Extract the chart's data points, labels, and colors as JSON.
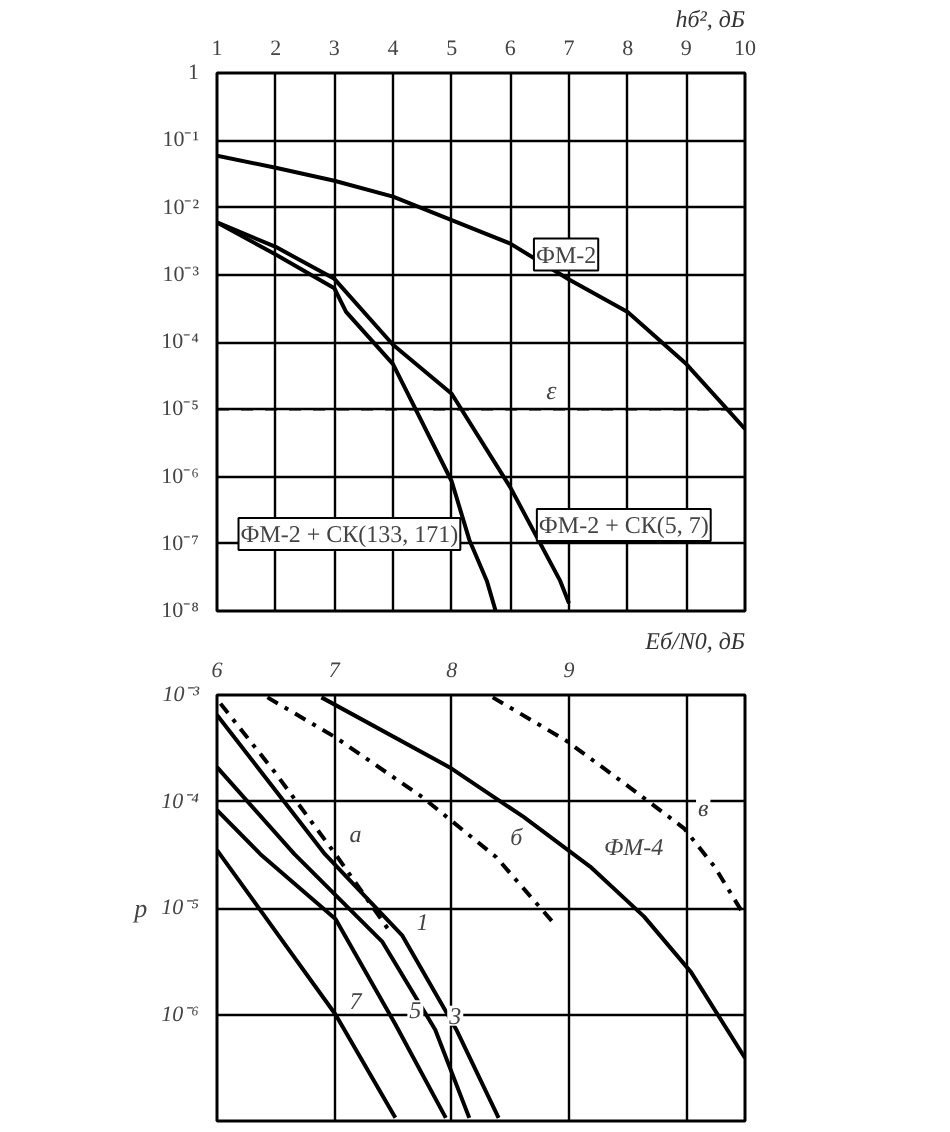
{
  "chart_data": [
    {
      "type": "line",
      "xlabel": "hб², дБ",
      "xlim": [
        1,
        10
      ],
      "xticks": [
        1,
        2,
        3,
        4,
        5,
        6,
        7,
        8,
        9,
        10
      ],
      "log": "y",
      "ylim": [
        1e-08,
        1
      ],
      "yticks": [
        1,
        {
          "value": 0.1,
          "label": "10⁻¹"
        },
        {
          "value": 0.01,
          "label": "10⁻²"
        },
        {
          "value": 0.001,
          "label": "10⁻³"
        },
        {
          "value": 0.0001,
          "label": "10⁻⁴"
        },
        {
          "value": 1e-05,
          "label": "10⁻⁵"
        },
        {
          "value": 1e-06,
          "label": "10⁻⁶"
        },
        {
          "value": 1e-07,
          "label": "10⁻⁷"
        },
        {
          "value": 1e-08,
          "label": "10⁻⁸"
        }
      ],
      "grid": true,
      "series": [
        {
          "color": "#000000",
          "x": [
            1,
            2,
            3,
            4,
            5,
            6,
            7,
            8,
            9,
            10
          ],
          "values": [
            0.059,
            0.039,
            0.025,
            0.0145,
            0.0065,
            0.0029,
            0.00085,
            0.00028,
            4.7e-05,
            5.1e-06
          ]
        },
        {
          "color": "#000000",
          "x": [
            1,
            2,
            3,
            4,
            5,
            6,
            6.85,
            7.0
          ],
          "values": [
            0.006,
            0.0026,
            0.00087,
            9.1e-05,
            1.7e-05,
            6.9e-07,
            2.8e-08,
            1.3e-08
          ]
        },
        {
          "color": "#000000",
          "x": [
            1,
            2,
            3,
            3.2,
            4,
            5,
            5.3,
            5.6,
            5.75
          ],
          "values": [
            0.006,
            0.002,
            0.00063,
            0.00028,
            4.7e-05,
            8.5e-07,
            1.15e-07,
            2.8e-08,
            1e-08
          ]
        }
      ],
      "ref_lines": [
        {
          "axis": "y",
          "value": 1e-05,
          "label": "ε",
          "line_style": "dashed"
        }
      ],
      "annotations": [
        {
          "text": "ФМ-2",
          "x": 6.3,
          "y": 0.002
        },
        {
          "text": "ФМ-2 + СК(5, 7)",
          "x": 6.35,
          "y": 1.9e-07
        },
        {
          "text": "ФМ-2 + СК(133, 171)",
          "x": 5.25,
          "y": 1.4e-07
        }
      ]
    },
    {
      "type": "line",
      "xlabel": "Eб/N0, дБ",
      "ylabel": "p",
      "xlim": [
        6,
        10.5
      ],
      "xticks": [
        6,
        7,
        8,
        9,
        {
          "value": 10,
          "label": null
        }
      ],
      "log": "y",
      "ylim": [
        1e-07,
        0.001
      ],
      "yticks": [
        {
          "value": 0.001,
          "label": "10⁻³"
        },
        {
          "value": 0.0001,
          "label": "10⁻⁴"
        },
        {
          "value": 1e-05,
          "label": "10⁻⁵"
        },
        {
          "value": 1e-06,
          "label": "10⁻⁶"
        }
      ],
      "grid": true,
      "series": [
        {
          "color": "#000000",
          "line_style": "dashdot",
          "x": [
            8.35,
            8.98,
            9.52,
            9.98,
            10.24,
            10.5
          ],
          "values": [
            0.00095,
            0.00037,
            0.000135,
            5.6e-05,
            2.45e-05,
            8.3e-06
          ]
        },
        {
          "color": "#000000",
          "x": [
            6.89,
            7.98,
            8.61,
            9.18,
            9.64,
            10.04,
            10.5
          ],
          "values": [
            0.00095,
            0.00021,
            7.2e-05,
            2.45e-05,
            8.3e-06,
            2.5e-06,
            3.9e-07
          ]
        },
        {
          "color": "#000000",
          "line_style": "dashdot",
          "x": [
            6.43,
            7.01,
            7.75,
            8.38,
            8.89
          ],
          "values": [
            0.00095,
            0.0004,
            0.00011,
            3e-05,
            6.8e-06
          ]
        },
        {
          "color": "#000000",
          "line_style": "dashdot",
          "x": [
            6.03,
            6.49,
            7.01,
            7.46
          ],
          "values": [
            0.00083,
            0.00019,
            3.2e-05,
            6.3e-06
          ]
        },
        {
          "color": "#000000",
          "x": [
            6.0,
            6.92,
            7.58,
            8.04,
            8.4
          ],
          "values": [
            0.00065,
            3.2e-05,
            5.5e-06,
            7.2e-07,
            1.07e-07
          ]
        },
        {
          "color": "#000000",
          "x": [
            6.0,
            6.66,
            7.41,
            7.86,
            8.15
          ],
          "values": [
            0.00021,
            3.2e-05,
            4.8e-06,
            7.2e-07,
            1.07e-07
          ]
        },
        {
          "color": "#000000",
          "x": [
            6.0,
            6.37,
            7.01,
            7.52,
            7.95
          ],
          "values": [
            8.3e-05,
            3.2e-05,
            7.9e-06,
            8.1e-07,
            1.07e-07
          ]
        },
        {
          "color": "#000000",
          "x": [
            6.0,
            7.01,
            7.52
          ],
          "values": [
            3.5e-05,
            1e-06,
            1.07e-07
          ]
        }
      ],
      "annotations": [
        {
          "text": "а",
          "x": 7.01,
          "y": 3.2e-05
        },
        {
          "text": "б",
          "x": 8.38,
          "y": 3e-05
        },
        {
          "text": "в",
          "x": 9.98,
          "y": 5.6e-05
        },
        {
          "text": "ФМ-4",
          "x": 9.18,
          "y": 2.45e-05
        },
        {
          "text": "1",
          "x": 7.58,
          "y": 5.5e-06
        },
        {
          "text": "3",
          "x": 7.86,
          "y": 7.2e-07
        },
        {
          "text": "5",
          "x": 7.52,
          "y": 8.1e-07
        },
        {
          "text": "7",
          "x": 7.01,
          "y": 1e-06
        }
      ]
    }
  ]
}
